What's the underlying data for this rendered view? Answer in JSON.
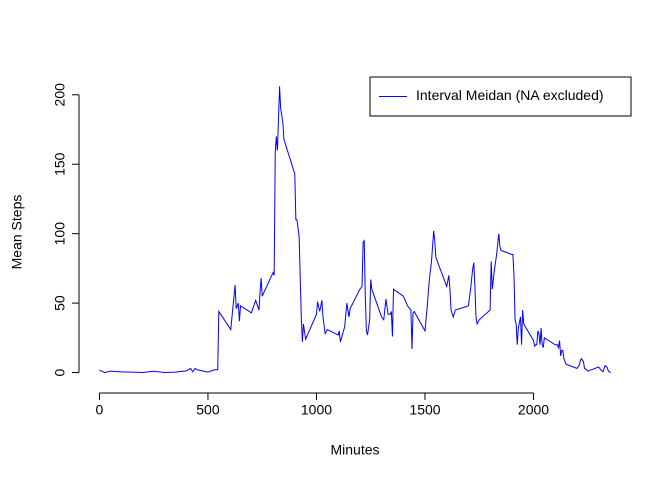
{
  "chart_data": {
    "type": "line",
    "x_label": "Minutes",
    "y_label": "Mean Steps",
    "legend_position": "topright",
    "x": [
      0,
      25,
      50,
      100,
      150,
      200,
      250,
      300,
      350,
      400,
      420,
      430,
      440,
      450,
      500,
      530,
      545,
      550,
      605,
      620,
      625,
      630,
      640,
      645,
      650,
      700,
      720,
      735,
      740,
      745,
      750,
      800,
      805,
      810,
      815,
      820,
      830,
      835,
      845,
      850,
      900,
      905,
      910,
      920,
      930,
      935,
      940,
      950,
      1000,
      1005,
      1015,
      1025,
      1030,
      1040,
      1050,
      1100,
      1105,
      1110,
      1130,
      1140,
      1150,
      1155,
      1200,
      1210,
      1215,
      1220,
      1225,
      1230,
      1235,
      1245,
      1250,
      1255,
      1300,
      1310,
      1320,
      1330,
      1340,
      1345,
      1350,
      1355,
      1400,
      1420,
      1435,
      1440,
      1445,
      1450,
      1500,
      1510,
      1520,
      1530,
      1540,
      1545,
      1550,
      1600,
      1610,
      1615,
      1620,
      1630,
      1640,
      1700,
      1710,
      1720,
      1725,
      1730,
      1735,
      1740,
      1750,
      1800,
      1805,
      1810,
      1820,
      1830,
      1840,
      1845,
      1850,
      1900,
      1905,
      1910,
      1915,
      1920,
      1925,
      1930,
      1940,
      1945,
      1950,
      1955,
      2000,
      2005,
      2010,
      2015,
      2020,
      2025,
      2030,
      2035,
      2040,
      2045,
      2050,
      2100,
      2110,
      2115,
      2120,
      2125,
      2130,
      2135,
      2140,
      2150,
      2200,
      2210,
      2215,
      2220,
      2230,
      2235,
      2245,
      2250,
      2300,
      2310,
      2320,
      2330,
      2340,
      2345,
      2355
    ],
    "series": [
      {
        "name": "Interval Meidan (NA excluded)",
        "color": "#0000ff",
        "values": [
          1.7,
          0,
          1,
          0.5,
          0.3,
          0,
          0.9,
          0,
          0.3,
          1.2,
          3,
          0.5,
          3,
          2,
          0.3,
          2,
          2,
          44,
          31,
          55,
          63,
          46,
          50,
          37,
          48,
          43,
          52,
          45,
          58,
          68,
          55,
          72,
          70,
          158,
          170,
          160,
          206,
          190,
          180,
          168,
          143,
          110,
          110,
          98,
          40,
          22,
          35,
          24,
          42,
          51,
          44,
          52,
          40,
          28,
          31,
          27,
          30,
          22,
          33,
          50,
          40,
          46,
          60,
          62,
          94,
          95,
          55,
          30,
          27,
          38,
          67,
          60,
          40,
          38,
          53,
          42,
          42,
          44,
          26,
          60,
          55,
          48,
          45,
          17,
          43,
          44,
          30,
          47,
          67,
          80,
          102,
          95,
          83,
          62,
          70,
          60,
          45,
          40,
          45,
          48,
          60,
          75,
          79,
          62,
          40,
          35,
          38,
          45,
          80,
          60,
          74,
          85,
          100,
          91,
          88,
          85,
          85,
          70,
          38,
          35,
          20,
          32,
          40,
          20,
          45,
          35,
          23,
          19,
          20,
          20,
          30,
          28,
          20,
          32,
          20,
          18,
          25,
          20,
          20,
          18,
          23,
          12,
          16,
          16,
          10,
          6,
          3,
          5,
          8,
          10,
          8,
          3,
          2,
          1,
          4,
          2,
          0.5,
          5,
          3.5,
          1,
          0
        ]
      }
    ],
    "xlim": [
      -94.2,
      2449.2
    ],
    "ylim": [
      -8.24,
      214.24
    ],
    "xticks": [
      0,
      500,
      1000,
      1500,
      2000
    ],
    "yticks": [
      0,
      50,
      100,
      150,
      200
    ]
  }
}
